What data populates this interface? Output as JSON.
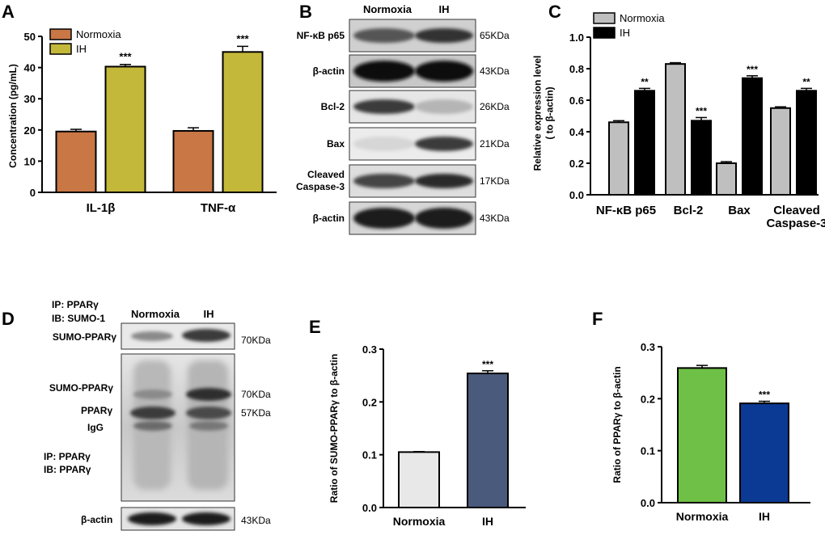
{
  "panels": {
    "A": "A",
    "B": "B",
    "C": "C",
    "D": "D",
    "E": "E",
    "F": "F"
  },
  "colors": {
    "normoxia_a": "#c87745",
    "ih_a": "#c4b83a",
    "normoxia_c": "#bfbfbf",
    "ih_c": "#000000",
    "normoxia_e": "#e8e8e8",
    "ih_e": "#4a5a7c",
    "normoxia_f": "#6fc046",
    "ih_f": "#0b3a94"
  },
  "blot_b": {
    "headers": [
      "Normoxia",
      "IH"
    ],
    "rows": [
      {
        "label": "NF-κB p65",
        "size": "65KDa"
      },
      {
        "label": "β-actin",
        "size": "43KDa"
      },
      {
        "label": "Bcl-2",
        "size": "26KDa"
      },
      {
        "label": "Bax",
        "size": "21KDa"
      },
      {
        "label": "Cleaved\nCaspase-3",
        "size": "17KDa"
      },
      {
        "label": "β-actin",
        "size": "43KDa"
      }
    ]
  },
  "blot_d": {
    "ip1": "IP: PPARγ",
    "ib1": "IB: SUMO-1",
    "headers": [
      "Normoxia",
      "IH"
    ],
    "top_label": "SUMO-PPARγ",
    "top_size": "70KDa",
    "mid_labels": [
      "SUMO-PPARγ",
      "PPARγ",
      "IgG"
    ],
    "mid_sizes": [
      "70KDa",
      "57KDa"
    ],
    "ip2": "IP: PPARγ",
    "ib2": "IB: PPARγ",
    "bottom_label": "β-actin",
    "bottom_size": "43KDa"
  },
  "chart_data": [
    {
      "panel": "A",
      "type": "bar",
      "categories": [
        "IL-1β",
        "TNF-α"
      ],
      "series": [
        {
          "name": "Normoxia",
          "values": [
            19.5,
            19.7
          ],
          "errors": [
            0.7,
            1.0
          ]
        },
        {
          "name": "IH",
          "values": [
            40.3,
            45.0
          ],
          "errors": [
            0.7,
            1.8
          ]
        }
      ],
      "significance": [
        "***",
        "***"
      ],
      "ylabel": "Concentration (pg/mL)",
      "ylim": [
        0,
        50
      ],
      "yticks": [
        0,
        10,
        20,
        30,
        40,
        50
      ],
      "legend": "top-left"
    },
    {
      "panel": "C",
      "type": "bar",
      "categories": [
        "NF-κB p65",
        "Bcl-2",
        "Bax",
        "Cleaved\nCaspase-3"
      ],
      "series": [
        {
          "name": "Normoxia",
          "values": [
            0.46,
            0.83,
            0.2,
            0.55
          ],
          "errors": [
            0.01,
            0.008,
            0.01,
            0.008
          ]
        },
        {
          "name": "IH",
          "values": [
            0.66,
            0.47,
            0.74,
            0.66
          ],
          "errors": [
            0.015,
            0.02,
            0.015,
            0.015
          ]
        }
      ],
      "significance": [
        "**",
        "***",
        "***",
        "**"
      ],
      "ylabel": "Relative expression level\n( to β-actin)",
      "ylim": [
        0,
        1.0
      ],
      "yticks": [
        "0.0",
        "0.2",
        "0.4",
        "0.6",
        "0.8",
        "1.0"
      ],
      "legend": "top-left"
    },
    {
      "panel": "E",
      "type": "bar",
      "categories": [
        "Normoxia",
        "IH"
      ],
      "values": [
        0.105,
        0.254
      ],
      "errors": [
        0.001,
        0.005
      ],
      "significance": [
        "",
        "***"
      ],
      "ylabel": "Ratio of SUMO-PPARγ to β-actin",
      "ylim": [
        0,
        0.3
      ],
      "yticks": [
        "0.0",
        "0.1",
        "0.2",
        "0.3"
      ]
    },
    {
      "panel": "F",
      "type": "bar",
      "categories": [
        "Normoxia",
        "IH"
      ],
      "values": [
        0.259,
        0.191
      ],
      "errors": [
        0.005,
        0.004
      ],
      "significance": [
        "",
        "***"
      ],
      "ylabel": "Ratio of PPARγ to β-actin",
      "ylim": [
        0,
        0.3
      ],
      "yticks": [
        "0.0",
        "0.1",
        "0.2",
        "0.3"
      ]
    }
  ]
}
